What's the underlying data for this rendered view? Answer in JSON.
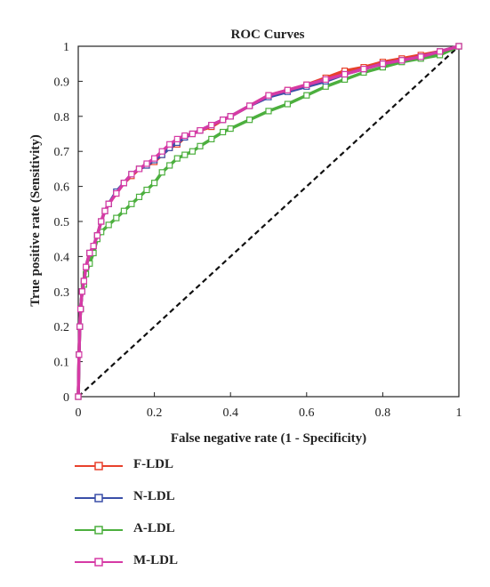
{
  "chart_data": {
    "type": "line",
    "title": "ROC Curves",
    "xlabel": "False negative rate (1 - Specificity)",
    "ylabel": "True positive rate (Sensitivity)",
    "xlim": [
      0,
      1
    ],
    "ylim": [
      0,
      1
    ],
    "x_ticks": [
      "0",
      "0.2",
      "0.4",
      "0.6",
      "0.8",
      "1"
    ],
    "y_ticks": [
      "0",
      "0.1",
      "0.2",
      "0.3",
      "0.4",
      "0.5",
      "0.6",
      "0.7",
      "0.8",
      "0.9",
      "1"
    ],
    "grid": false,
    "legend_position": "below",
    "reference_line": {
      "style": "dashed",
      "color": "#111111",
      "x": [
        0,
        1
      ],
      "y": [
        0,
        1
      ]
    },
    "series": [
      {
        "name": "F-LDL",
        "color": "#e8412c",
        "x": [
          0,
          0.002,
          0.004,
          0.006,
          0.01,
          0.015,
          0.02,
          0.03,
          0.04,
          0.05,
          0.06,
          0.07,
          0.08,
          0.1,
          0.12,
          0.14,
          0.16,
          0.18,
          0.2,
          0.22,
          0.24,
          0.26,
          0.28,
          0.3,
          0.32,
          0.35,
          0.38,
          0.4,
          0.45,
          0.5,
          0.55,
          0.6,
          0.65,
          0.7,
          0.75,
          0.8,
          0.85,
          0.9,
          0.95,
          1
        ],
        "y": [
          0,
          0.12,
          0.2,
          0.25,
          0.3,
          0.33,
          0.37,
          0.41,
          0.43,
          0.46,
          0.5,
          0.53,
          0.55,
          0.58,
          0.61,
          0.63,
          0.65,
          0.66,
          0.67,
          0.69,
          0.71,
          0.72,
          0.74,
          0.75,
          0.76,
          0.77,
          0.79,
          0.8,
          0.83,
          0.86,
          0.875,
          0.89,
          0.91,
          0.93,
          0.94,
          0.955,
          0.965,
          0.975,
          0.985,
          1
        ]
      },
      {
        "name": "N-LDL",
        "color": "#3a4fa8",
        "x": [
          0,
          0.002,
          0.004,
          0.006,
          0.01,
          0.015,
          0.02,
          0.03,
          0.04,
          0.05,
          0.06,
          0.07,
          0.08,
          0.1,
          0.12,
          0.14,
          0.16,
          0.18,
          0.2,
          0.22,
          0.24,
          0.26,
          0.28,
          0.3,
          0.32,
          0.35,
          0.38,
          0.4,
          0.45,
          0.5,
          0.55,
          0.6,
          0.65,
          0.7,
          0.75,
          0.8,
          0.85,
          0.9,
          0.95,
          1
        ],
        "y": [
          0,
          0.12,
          0.2,
          0.25,
          0.3,
          0.33,
          0.37,
          0.41,
          0.43,
          0.46,
          0.5,
          0.53,
          0.55,
          0.585,
          0.61,
          0.635,
          0.65,
          0.66,
          0.675,
          0.69,
          0.71,
          0.725,
          0.74,
          0.75,
          0.76,
          0.775,
          0.79,
          0.8,
          0.83,
          0.855,
          0.87,
          0.885,
          0.9,
          0.92,
          0.935,
          0.95,
          0.96,
          0.97,
          0.985,
          1
        ]
      },
      {
        "name": "A-LDL",
        "color": "#4caf3e",
        "x": [
          0,
          0.002,
          0.004,
          0.006,
          0.01,
          0.015,
          0.02,
          0.03,
          0.04,
          0.05,
          0.06,
          0.08,
          0.1,
          0.12,
          0.14,
          0.16,
          0.18,
          0.2,
          0.22,
          0.24,
          0.26,
          0.28,
          0.3,
          0.32,
          0.35,
          0.38,
          0.4,
          0.45,
          0.5,
          0.55,
          0.6,
          0.65,
          0.7,
          0.75,
          0.8,
          0.85,
          0.9,
          0.95,
          1
        ],
        "y": [
          0,
          0.12,
          0.2,
          0.25,
          0.3,
          0.32,
          0.35,
          0.38,
          0.41,
          0.45,
          0.47,
          0.49,
          0.51,
          0.53,
          0.55,
          0.57,
          0.59,
          0.61,
          0.64,
          0.66,
          0.68,
          0.69,
          0.7,
          0.715,
          0.735,
          0.755,
          0.765,
          0.79,
          0.815,
          0.835,
          0.86,
          0.885,
          0.905,
          0.925,
          0.94,
          0.955,
          0.965,
          0.975,
          1
        ]
      },
      {
        "name": "M-LDL",
        "color": "#d63aa5",
        "x": [
          0,
          0.002,
          0.004,
          0.006,
          0.01,
          0.015,
          0.02,
          0.03,
          0.04,
          0.05,
          0.06,
          0.07,
          0.08,
          0.1,
          0.12,
          0.14,
          0.16,
          0.18,
          0.2,
          0.22,
          0.24,
          0.26,
          0.28,
          0.3,
          0.32,
          0.35,
          0.38,
          0.4,
          0.45,
          0.5,
          0.55,
          0.6,
          0.65,
          0.7,
          0.75,
          0.8,
          0.85,
          0.9,
          0.95,
          1
        ],
        "y": [
          0,
          0.12,
          0.2,
          0.25,
          0.3,
          0.33,
          0.37,
          0.41,
          0.43,
          0.46,
          0.5,
          0.53,
          0.55,
          0.58,
          0.61,
          0.635,
          0.65,
          0.665,
          0.68,
          0.7,
          0.72,
          0.735,
          0.745,
          0.75,
          0.76,
          0.775,
          0.79,
          0.8,
          0.83,
          0.86,
          0.875,
          0.89,
          0.905,
          0.92,
          0.935,
          0.95,
          0.96,
          0.97,
          0.985,
          1
        ]
      }
    ]
  }
}
